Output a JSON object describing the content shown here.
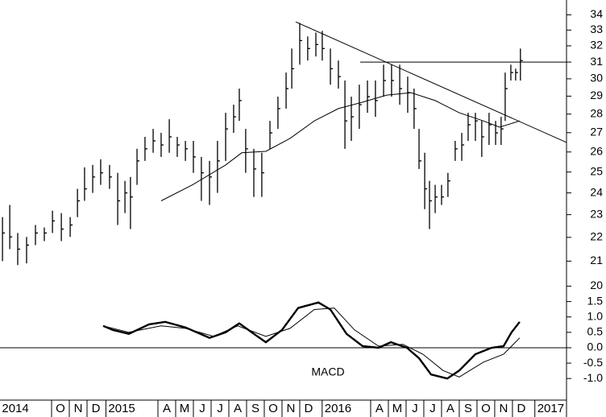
{
  "chart_data": [
    {
      "type": "ohlc",
      "log_scale": true,
      "color": "#000000",
      "xlim": [
        6.09,
        38.05
      ],
      "ylim": [
        19.7,
        35.0
      ],
      "yticks": [
        20,
        21,
        22,
        23,
        24,
        25,
        26,
        27,
        28,
        29,
        30,
        31,
        32,
        33,
        34
      ],
      "x": [
        6.23,
        6.64,
        7.09,
        7.59,
        8.09,
        8.59,
        9.05,
        9.55,
        10.05,
        10.46,
        10.86,
        11.32,
        11.77,
        12.27,
        12.73,
        13.14,
        13.45,
        13.82,
        14.27,
        14.73,
        15.18,
        15.64,
        16.09,
        16.55,
        17.0,
        17.45,
        17.91,
        18.36,
        18.82,
        19.27,
        19.59,
        19.95,
        20.41,
        20.86,
        21.32,
        21.77,
        22.23,
        22.55,
        23.0,
        23.45,
        23.91,
        24.27,
        24.73,
        25.18,
        25.55,
        25.91,
        26.36,
        26.82,
        27.27,
        27.73,
        28.18,
        28.64,
        29.09,
        29.45,
        29.73,
        30.05,
        30.32,
        30.64,
        31.0,
        31.36,
        31.77,
        32.14,
        32.5,
        32.91,
        33.27,
        33.68,
        34.05,
        34.36,
        34.59,
        34.91,
        35.18,
        35.45
      ],
      "high": [
        22.89,
        23.44,
        22.19,
        22.02,
        22.54,
        22.43,
        23.18,
        23.07,
        22.89,
        24.19,
        25.23,
        25.35,
        25.63,
        25.35,
        24.96,
        24.57,
        24.76,
        26.16,
        26.78,
        27.2,
        26.99,
        27.72,
        26.78,
        26.57,
        26.57,
        25.75,
        25.55,
        26.57,
        28.07,
        28.52,
        29.43,
        27.2,
        26.16,
        25.96,
        27.63,
        28.97,
        30.37,
        31.83,
        33.47,
        32.59,
        32.84,
        32.95,
        31.83,
        31.09,
        29.9,
        28.97,
        29.66,
        29.9,
        29.9,
        30.84,
        30.84,
        30.84,
        30.13,
        29.43,
        27.2,
        25.96,
        24.57,
        24.38,
        24.38,
        24.96,
        26.57,
        26.99,
        28.07,
        28.07,
        27.63,
        28.07,
        27.63,
        27.85,
        30.37,
        30.84,
        30.6,
        31.83
      ],
      "low": [
        21.0,
        21.5,
        20.84,
        20.91,
        21.67,
        21.84,
        22.19,
        21.84,
        22.02,
        22.89,
        23.63,
        24.0,
        24.38,
        24.19,
        22.54,
        23.07,
        22.36,
        24.38,
        25.55,
        25.96,
        25.75,
        25.96,
        25.75,
        25.55,
        24.96,
        23.63,
        23.44,
        24.0,
        25.55,
        26.99,
        27.63,
        24.96,
        23.81,
        23.81,
        26.16,
        27.2,
        28.3,
        29.43,
        30.84,
        31.09,
        31.34,
        31.09,
        29.66,
        29.43,
        26.16,
        26.57,
        27.2,
        28.07,
        27.85,
        28.97,
        28.97,
        28.52,
        28.07,
        27.2,
        25.15,
        23.25,
        22.36,
        23.07,
        23.44,
        23.81,
        25.55,
        25.55,
        26.57,
        26.57,
        25.75,
        26.36,
        26.36,
        26.36,
        27.63,
        29.9,
        29.9,
        29.9
      ],
      "close": [
        22.19,
        22.02,
        21.5,
        21.67,
        22.19,
        22.19,
        22.72,
        22.36,
        22.54,
        23.63,
        24.19,
        24.76,
        24.96,
        24.76,
        23.63,
        24.0,
        23.81,
        25.55,
        26.16,
        26.57,
        26.36,
        26.78,
        26.36,
        26.16,
        25.75,
        24.96,
        24.76,
        25.55,
        27.2,
        27.85,
        28.75,
        26.16,
        25.15,
        24.96,
        26.99,
        28.3,
        29.43,
        30.6,
        32.33,
        31.83,
        32.08,
        31.83,
        30.6,
        30.13,
        27.63,
        27.85,
        28.52,
        28.97,
        28.75,
        29.9,
        29.9,
        29.43,
        29.2,
        28.3,
        25.55,
        24.19,
        23.63,
        23.81,
        23.81,
        24.57,
        26.16,
        26.36,
        27.42,
        27.63,
        26.78,
        27.42,
        26.99,
        27.2,
        29.43,
        30.37,
        30.37,
        31.09
      ],
      "moving_average": {
        "x": [
          15.18,
          16.95,
          18.82,
          19.73,
          21.09,
          22.45,
          23.82,
          25.18,
          26.55,
          27.91,
          29.27,
          30.64,
          32.0,
          33.36,
          34.27,
          35.41
        ],
        "values": [
          23.63,
          24.38,
          25.35,
          25.96,
          26.03,
          26.7,
          27.63,
          28.3,
          28.66,
          29.06,
          29.2,
          28.75,
          28.07,
          27.63,
          27.29,
          27.63
        ]
      },
      "trendlines": [
        {
          "x": [
            22.77,
            38.05
          ],
          "values": [
            33.53,
            26.49
          ]
        },
        {
          "x": [
            26.41,
            38.05
          ],
          "values": [
            31,
            31
          ]
        }
      ]
    },
    {
      "type": "line",
      "color": "#000000",
      "annotation": "MACD",
      "xlim": [
        6.09,
        38.05
      ],
      "ylim": [
        -1.7,
        1.75
      ],
      "yticks": [
        {
          "value": -1.0,
          "label": "-1.0"
        },
        -0.5,
        {
          "value": 0,
          "label": "0.0"
        },
        0.5,
        {
          "value": 1.0,
          "label": "1.0"
        },
        1.5
      ],
      "xticks": [
        {
          "value": 6.2,
          "label": "2014"
        },
        {
          "value": 9.5,
          "label": "O"
        },
        {
          "value": 10.5,
          "label": "N"
        },
        {
          "value": 11.5,
          "label": "D"
        },
        {
          "value": 12.2,
          "label": "2015"
        },
        {
          "value": 15.5,
          "label": "A"
        },
        {
          "value": 16.5,
          "label": "M"
        },
        {
          "value": 17.5,
          "label": "J"
        },
        {
          "value": 18.5,
          "label": "J"
        },
        {
          "value": 19.5,
          "label": "A"
        },
        {
          "value": 20.5,
          "label": "S"
        },
        {
          "value": 21.5,
          "label": "O"
        },
        {
          "value": 22.5,
          "label": "N"
        },
        {
          "value": 23.5,
          "label": "D"
        },
        {
          "value": 24.4,
          "label": "2016"
        },
        {
          "value": 27.5,
          "label": "A"
        },
        {
          "value": 28.5,
          "label": "M"
        },
        {
          "value": 29.5,
          "label": "J"
        },
        {
          "value": 30.5,
          "label": "J"
        },
        {
          "value": 31.5,
          "label": "A"
        },
        {
          "value": 32.5,
          "label": "S"
        },
        {
          "value": 33.5,
          "label": "O"
        },
        {
          "value": 34.5,
          "label": "N"
        },
        {
          "value": 35.5,
          "label": "D"
        },
        {
          "value": 36.4,
          "label": "2017"
        }
      ],
      "series": [
        {
          "x": [
            11.91,
            12.45,
            13.36,
            14.5,
            15.41,
            16.55,
            17.91,
            18.82,
            19.59,
            20.41,
            21.09,
            22.0,
            22.91,
            24.05,
            24.73,
            25.64,
            26.55,
            27.45,
            28.14,
            29.05,
            29.73,
            30.41,
            31.32,
            32.0,
            32.91,
            33.82,
            34.5,
            34.95,
            35.41
          ],
          "values": [
            0.71,
            0.58,
            0.45,
            0.76,
            0.84,
            0.66,
            0.32,
            0.5,
            0.79,
            0.45,
            0.18,
            0.58,
            1.29,
            1.47,
            1.24,
            0.45,
            0.05,
            0,
            0.18,
            0,
            -0.34,
            -0.87,
            -1.0,
            -0.74,
            -0.21,
            0,
            0.05,
            0.5,
            0.84
          ]
        },
        {
          "x": [
            11.91,
            13.36,
            15.18,
            16.55,
            18.14,
            19.5,
            21.09,
            22.45,
            23.82,
            24.95,
            26.09,
            27.45,
            28.82,
            29.95,
            31.09,
            32.0,
            33.36,
            34.5,
            35.41
          ],
          "values": [
            0.71,
            0.5,
            0.71,
            0.63,
            0.37,
            0.71,
            0.37,
            0.63,
            1.24,
            1.29,
            0.58,
            0.05,
            0.11,
            -0.21,
            -0.74,
            -0.95,
            -0.47,
            -0.21,
            0.32
          ]
        }
      ]
    }
  ]
}
